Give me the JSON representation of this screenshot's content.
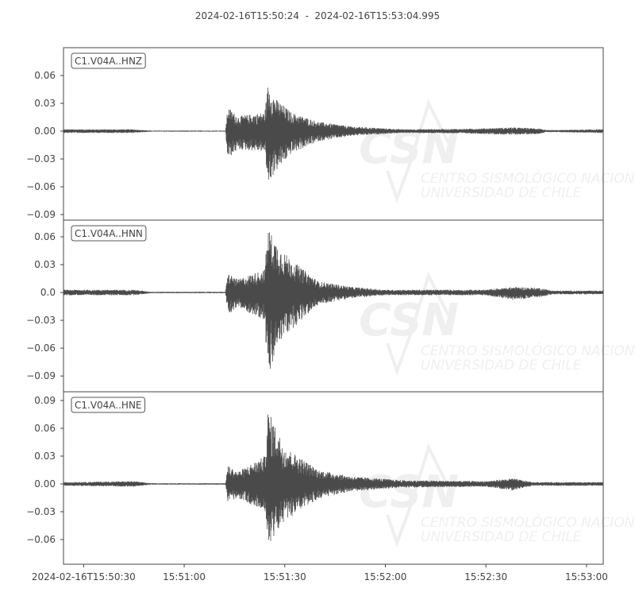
{
  "title": "2024-02-16T15:50:24  -  2024-02-16T15:53:04.995",
  "watermark": {
    "logo": "CSN",
    "line1": "CENTRO SISMOLÓGICO NACIONAL",
    "line2": "UNIVERSIDAD DE CHILE"
  },
  "colors": {
    "trace": "#4a4a4a",
    "axis": "#444444",
    "text": "#444444"
  },
  "chart_data": {
    "type": "line",
    "x_range": [
      "15:50:24",
      "15:53:04.995"
    ],
    "x_ticks": [
      {
        "time": "15:50:30",
        "label": "2024-02-16T15:50:30"
      },
      {
        "time": "15:51:00",
        "label": "15:51:00"
      },
      {
        "time": "15:51:30",
        "label": "15:51:30"
      },
      {
        "time": "15:52:00",
        "label": "15:52:00"
      },
      {
        "time": "15:52:30",
        "label": "15:52:30"
      },
      {
        "time": "15:53:00",
        "label": "15:53:00"
      }
    ],
    "grid": false,
    "traces": [
      {
        "name": "C1.V04A..HNZ",
        "ylim": [
          -0.096,
          0.09
        ],
        "y_ticks": [
          "0.06",
          "0.03",
          "0.00",
          "−0.03",
          "−0.06",
          "−0.09"
        ],
        "y_tick_values": [
          0.06,
          0.03,
          0,
          -0.03,
          -0.06,
          -0.09
        ],
        "envelope": [
          [
            "15:50:24",
            0.002,
            -0.002
          ],
          [
            "15:50:45",
            0.002,
            -0.002
          ],
          [
            "15:50:50",
            0.0006,
            -0.0006
          ],
          [
            "15:51:12.3",
            0.0006,
            -0.0006
          ],
          [
            "15:51:13",
            0.026,
            -0.03
          ],
          [
            "15:51:16",
            0.016,
            -0.02
          ],
          [
            "15:51:24",
            0.02,
            -0.022
          ],
          [
            "15:51:25",
            0.05,
            -0.057
          ],
          [
            "15:51:27",
            0.036,
            -0.045
          ],
          [
            "15:51:32",
            0.02,
            -0.024
          ],
          [
            "15:51:40",
            0.01,
            -0.011
          ],
          [
            "15:51:50",
            0.005,
            -0.005
          ],
          [
            "15:52:05",
            0.002,
            -0.002
          ],
          [
            "15:52:24",
            0.0025,
            -0.0025
          ],
          [
            "15:52:38",
            0.004,
            -0.004
          ],
          [
            "15:52:46",
            0.003,
            -0.003
          ],
          [
            "15:52:48",
            0.001,
            -0.001
          ],
          [
            "15:53:05",
            0.002,
            -0.002
          ]
        ]
      },
      {
        "name": "C1.V04A..HNN",
        "ylim": [
          -0.107,
          0.078
        ],
        "y_ticks": [
          "0.06",
          "0.03",
          "0.0",
          "−0.03",
          "−0.06",
          "−0.09"
        ],
        "y_tick_values": [
          0.06,
          0.03,
          0,
          -0.03,
          -0.06,
          -0.09
        ],
        "envelope": [
          [
            "15:50:24",
            0.003,
            -0.003
          ],
          [
            "15:50:45",
            0.003,
            -0.003
          ],
          [
            "15:50:50",
            0.0008,
            -0.0008
          ],
          [
            "15:51:12.3",
            0.0008,
            -0.0008
          ],
          [
            "15:51:13",
            0.021,
            -0.024
          ],
          [
            "15:51:16",
            0.014,
            -0.016
          ],
          [
            "15:51:24",
            0.025,
            -0.03
          ],
          [
            "15:51:25",
            0.07,
            -0.098
          ],
          [
            "15:51:28",
            0.05,
            -0.055
          ],
          [
            "15:51:32",
            0.035,
            -0.04
          ],
          [
            "15:51:40",
            0.012,
            -0.013
          ],
          [
            "15:51:50",
            0.006,
            -0.006
          ],
          [
            "15:52:00",
            0.003,
            -0.003
          ],
          [
            "15:52:30",
            0.003,
            -0.003
          ],
          [
            "15:52:38",
            0.006,
            -0.008
          ],
          [
            "15:52:46",
            0.005,
            -0.005
          ],
          [
            "15:52:50",
            0.002,
            -0.002
          ],
          [
            "15:53:05",
            0.002,
            -0.002
          ]
        ]
      },
      {
        "name": "C1.V04A..HNE",
        "ylim": [
          -0.0866,
          0.0994
        ],
        "y_ticks": [
          "0.09",
          "0.06",
          "0.03",
          "0.00",
          "−0.03",
          "−0.06"
        ],
        "y_tick_values": [
          0.09,
          0.06,
          0.03,
          0,
          -0.03,
          -0.06
        ],
        "envelope": [
          [
            "15:50:24",
            0.002,
            -0.002
          ],
          [
            "15:50:45",
            0.003,
            -0.003
          ],
          [
            "15:50:50",
            0.0008,
            -0.0008
          ],
          [
            "15:51:12.3",
            0.0008,
            -0.0008
          ],
          [
            "15:51:13",
            0.02,
            -0.02
          ],
          [
            "15:51:16",
            0.013,
            -0.015
          ],
          [
            "15:51:24",
            0.03,
            -0.03
          ],
          [
            "15:51:25",
            0.08,
            -0.066
          ],
          [
            "15:51:30",
            0.04,
            -0.04
          ],
          [
            "15:51:40",
            0.015,
            -0.016
          ],
          [
            "15:51:50",
            0.008,
            -0.008
          ],
          [
            "15:52:05",
            0.004,
            -0.004
          ],
          [
            "15:52:30",
            0.003,
            -0.003
          ],
          [
            "15:52:38",
            0.006,
            -0.007
          ],
          [
            "15:52:44",
            0.002,
            -0.002
          ],
          [
            "15:53:05",
            0.002,
            -0.002
          ]
        ]
      }
    ]
  }
}
